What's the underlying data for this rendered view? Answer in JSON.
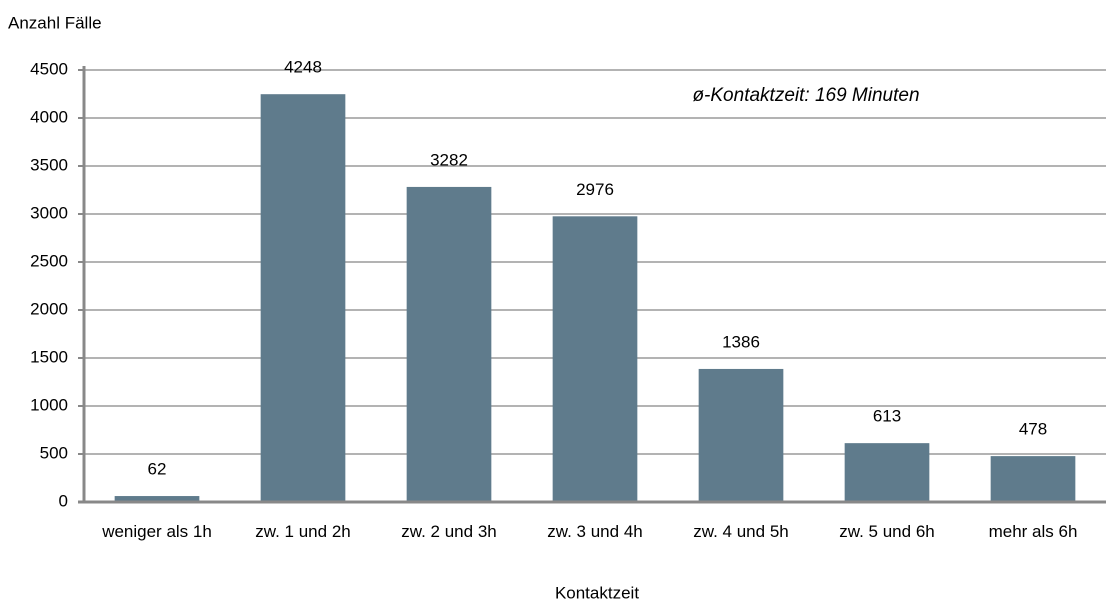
{
  "chart_data": {
    "type": "bar",
    "ylabel": "Anzahl Fälle",
    "xlabel": "Kontaktzeit",
    "annotation": "ø-Kontaktzeit: 169 Minuten",
    "categories": [
      "weniger als 1h",
      "zw. 1 und 2h",
      "zw. 2 und 3h",
      "zw. 3 und 4h",
      "zw. 4 und 5h",
      "zw. 5 und 6h",
      "mehr als 6h"
    ],
    "values": [
      62,
      4248,
      3282,
      2976,
      1386,
      613,
      478
    ],
    "color": "#5f7b8c",
    "ylim": [
      0,
      4500
    ],
    "yticks": [
      0,
      500,
      1000,
      1500,
      2000,
      2500,
      3000,
      3500,
      4000,
      4500
    ],
    "grid": true
  }
}
